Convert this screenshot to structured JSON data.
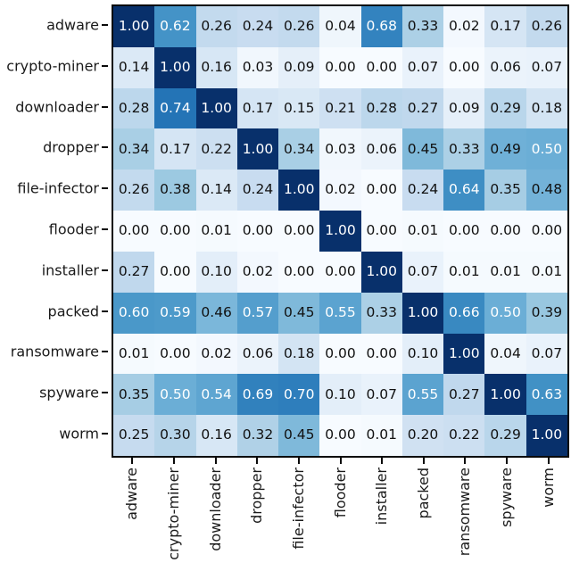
{
  "chart_data": {
    "type": "heatmap",
    "title": "",
    "xlabel": "",
    "ylabel": "",
    "colormap": "Blues",
    "vmin": 0,
    "vmax": 1,
    "grid": false,
    "legend": "none",
    "categories": [
      "adware",
      "crypto-miner",
      "downloader",
      "dropper",
      "file-infector",
      "flooder",
      "installer",
      "packed",
      "ransomware",
      "spyware",
      "worm"
    ],
    "x_categories": [
      "adware",
      "crypto-miner",
      "downloader",
      "dropper",
      "file-infector",
      "flooder",
      "installer",
      "packed",
      "ransomware",
      "spyware",
      "worm"
    ],
    "matrix": [
      [
        1.0,
        0.62,
        0.26,
        0.24,
        0.26,
        0.04,
        0.68,
        0.33,
        0.02,
        0.17,
        0.26
      ],
      [
        0.14,
        1.0,
        0.16,
        0.03,
        0.09,
        0.0,
        0.0,
        0.07,
        0.0,
        0.06,
        0.07
      ],
      [
        0.28,
        0.74,
        1.0,
        0.17,
        0.15,
        0.21,
        0.28,
        0.27,
        0.09,
        0.29,
        0.18
      ],
      [
        0.34,
        0.17,
        0.22,
        1.0,
        0.34,
        0.03,
        0.06,
        0.45,
        0.33,
        0.49,
        0.5
      ],
      [
        0.26,
        0.38,
        0.14,
        0.24,
        1.0,
        0.02,
        0.0,
        0.24,
        0.64,
        0.35,
        0.48
      ],
      [
        0.0,
        0.0,
        0.01,
        0.0,
        0.0,
        1.0,
        0.0,
        0.01,
        0.0,
        0.0,
        0.0
      ],
      [
        0.27,
        0.0,
        0.1,
        0.02,
        0.0,
        0.0,
        1.0,
        0.07,
        0.01,
        0.01,
        0.01
      ],
      [
        0.6,
        0.59,
        0.46,
        0.57,
        0.45,
        0.55,
        0.33,
        1.0,
        0.66,
        0.5,
        0.39
      ],
      [
        0.01,
        0.0,
        0.02,
        0.06,
        0.18,
        0.0,
        0.0,
        0.1,
        1.0,
        0.04,
        0.07
      ],
      [
        0.35,
        0.5,
        0.54,
        0.69,
        0.7,
        0.1,
        0.07,
        0.55,
        0.27,
        1.0,
        0.63
      ],
      [
        0.25,
        0.3,
        0.16,
        0.32,
        0.45,
        0.0,
        0.01,
        0.2,
        0.22,
        0.29,
        1.0
      ]
    ],
    "annotation_decimals": 2,
    "text_threshold": 0.5
  },
  "colors": {
    "background": "#ffffff",
    "spine": "#0a0a0a",
    "tick_label": "#1a1a1a",
    "text_on_light": "#111111",
    "text_on_dark": "#ffffff",
    "colormap_stops": [
      [
        0.0,
        "#f7fbff"
      ],
      [
        0.125,
        "#deebf7"
      ],
      [
        0.25,
        "#c6dbef"
      ],
      [
        0.375,
        "#9ecae1"
      ],
      [
        0.5,
        "#6baed6"
      ],
      [
        0.625,
        "#4292c6"
      ],
      [
        0.75,
        "#2171b5"
      ],
      [
        0.875,
        "#08519c"
      ],
      [
        1.0,
        "#08306b"
      ]
    ]
  }
}
